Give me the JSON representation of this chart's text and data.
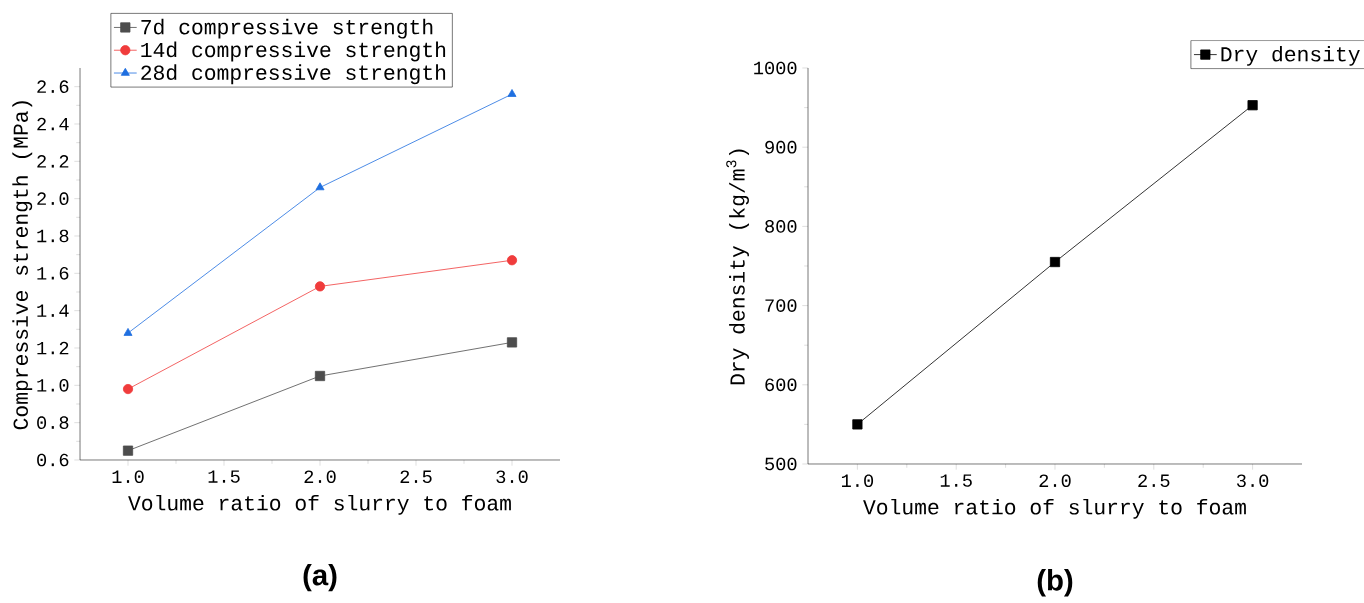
{
  "chart_data": [
    {
      "type": "line",
      "xlabel": "Volume ratio of slurry to foam",
      "ylabel": "Compressive strength (MPa)",
      "x": [
        1.0,
        2.0,
        3.0
      ],
      "xlim": [
        0.75,
        3.25
      ],
      "xticks": [
        {
          "value": 1.0,
          "label": "1.0"
        },
        {
          "value": 1.5,
          "label": "1.5"
        },
        {
          "value": 2.0,
          "label": "2.0"
        },
        {
          "value": 2.5,
          "label": "2.5"
        },
        {
          "value": 3.0,
          "label": "3.0"
        }
      ],
      "ylim": [
        0.6,
        2.7
      ],
      "yticks": [
        {
          "value": 0.6,
          "label": "0.6"
        },
        {
          "value": 0.8,
          "label": "0.8"
        },
        {
          "value": 1.0,
          "label": "1.0"
        },
        {
          "value": 1.2,
          "label": "1.2"
        },
        {
          "value": 1.4,
          "label": "1.4"
        },
        {
          "value": 1.6,
          "label": "1.6"
        },
        {
          "value": 1.8,
          "label": "1.8"
        },
        {
          "value": 2.0,
          "label": "2.0"
        },
        {
          "value": 2.2,
          "label": "2.2"
        },
        {
          "value": 2.4,
          "label": "2.4"
        },
        {
          "value": 2.6,
          "label": "2.6"
        }
      ],
      "series": [
        {
          "name": "7d compressive strength",
          "color": "#4d4d4d",
          "marker": "square",
          "values": [
            0.65,
            1.05,
            1.23
          ]
        },
        {
          "name": "14d compressive strength",
          "color": "#f03c3c",
          "marker": "circle",
          "values": [
            0.98,
            1.53,
            1.67
          ]
        },
        {
          "name": "28d compressive strength",
          "color": "#1f6fe0",
          "marker": "triangle",
          "values": [
            1.28,
            2.06,
            2.56
          ]
        }
      ],
      "legend": "top",
      "grid": false,
      "annotations": [
        "(a)"
      ]
    },
    {
      "type": "line",
      "xlabel": "Volume ratio of slurry to foam",
      "ylabel": "Dry density (kg/m$^{3}$)",
      "x": [
        1.0,
        2.0,
        3.0
      ],
      "xlim": [
        0.75,
        3.25
      ],
      "xticks": [
        {
          "value": 1.0,
          "label": "1.0"
        },
        {
          "value": 1.5,
          "label": "1.5"
        },
        {
          "value": 2.0,
          "label": "2.0"
        },
        {
          "value": 2.5,
          "label": "2.5"
        },
        {
          "value": 3.0,
          "label": "3.0"
        }
      ],
      "ylim": [
        500,
        1000
      ],
      "yticks": [
        500,
        600,
        700,
        800,
        900,
        1000
      ],
      "series": [
        {
          "name": "Dry density",
          "color": "#000000",
          "marker": "square",
          "values": [
            550,
            755,
            953
          ]
        }
      ],
      "legend": "top right",
      "grid": false,
      "annotations": [
        "(b)"
      ]
    }
  ]
}
